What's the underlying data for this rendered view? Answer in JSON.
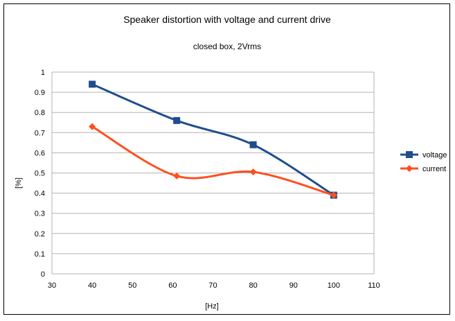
{
  "chart_data": {
    "type": "line",
    "title": "Speaker distortion with voltage and current drive",
    "subtitle": "closed box, 2Vrms",
    "xlabel": "[Hz]",
    "ylabel": "[%]",
    "xlim": [
      30,
      110
    ],
    "ylim": [
      0,
      1
    ],
    "xticks": [
      30,
      40,
      50,
      60,
      70,
      80,
      90,
      100,
      110
    ],
    "yticks": [
      0,
      0.1,
      0.2,
      0.3,
      0.4,
      0.5,
      0.6,
      0.7,
      0.8,
      0.9,
      1
    ],
    "grid": "horizontal",
    "legend_position": "right",
    "series": [
      {
        "name": "voltage",
        "color": "#1f4e8c",
        "marker": "square",
        "points": [
          {
            "x": 40,
            "y": 0.94
          },
          {
            "x": 61,
            "y": 0.76
          },
          {
            "x": 80,
            "y": 0.64
          },
          {
            "x": 100,
            "y": 0.39
          }
        ]
      },
      {
        "name": "current",
        "color": "#ff4f1f",
        "marker": "diamond",
        "points": [
          {
            "x": 40,
            "y": 0.73
          },
          {
            "x": 61,
            "y": 0.485
          },
          {
            "x": 80,
            "y": 0.505
          },
          {
            "x": 100,
            "y": 0.39
          }
        ]
      }
    ]
  }
}
